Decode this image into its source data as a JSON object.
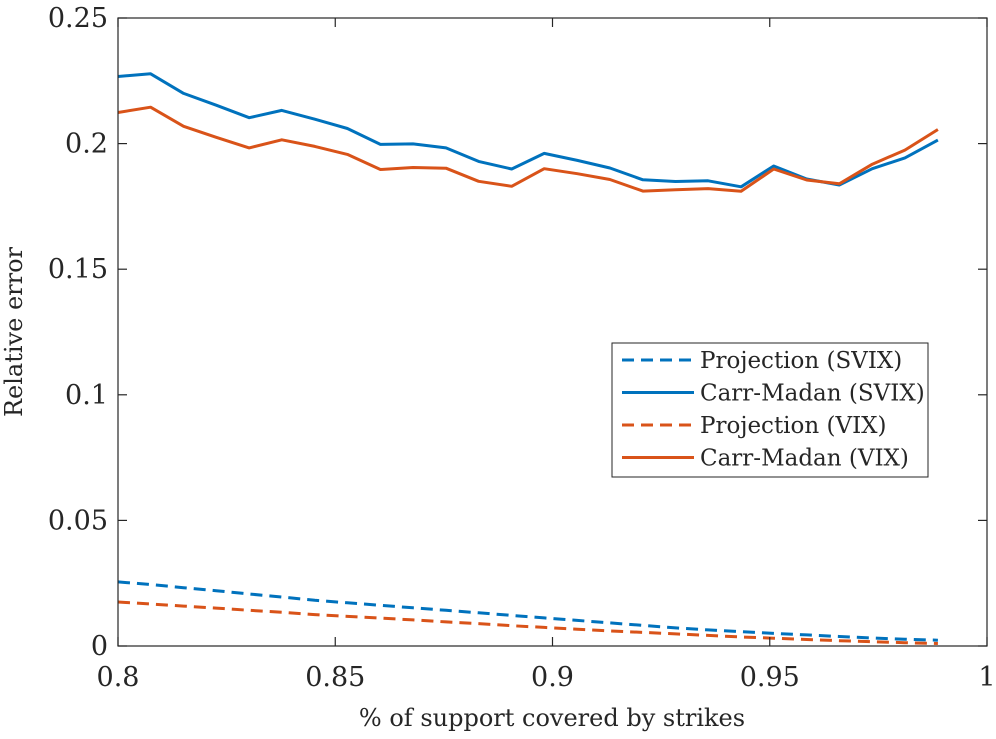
{
  "chart_data": {
    "type": "line",
    "title": "",
    "xlabel": "% of support covered by strikes",
    "ylabel": "Relative error",
    "xlim": [
      0.8,
      1.0
    ],
    "ylim": [
      0,
      0.25
    ],
    "grid": false,
    "legend_position": "right-middle",
    "xticks": [
      0.8,
      0.85,
      0.9,
      0.95,
      1.0
    ],
    "xtick_labels": [
      "0.8",
      "0.85",
      "0.9",
      "0.95",
      "1"
    ],
    "yticks": [
      0,
      0.05,
      0.1,
      0.15,
      0.2,
      0.25
    ],
    "ytick_labels": [
      "0",
      "0.05",
      "0.1",
      "0.15",
      "0.2",
      "0.25"
    ],
    "x": [
      0.8,
      0.8075,
      0.8151,
      0.8226,
      0.8302,
      0.8377,
      0.8453,
      0.8528,
      0.8604,
      0.8679,
      0.8755,
      0.883,
      0.8906,
      0.8981,
      0.9057,
      0.9132,
      0.9208,
      0.9283,
      0.9358,
      0.9434,
      0.9509,
      0.9585,
      0.966,
      0.9736,
      0.9811,
      0.9887
    ],
    "series": [
      {
        "name": "Projection (SVIX)",
        "color": "#0072BD",
        "style": "dashed",
        "values": [
          0.0255,
          0.0245,
          0.0232,
          0.022,
          0.0207,
          0.0195,
          0.0182,
          0.0172,
          0.0162,
          0.0152,
          0.0142,
          0.0132,
          0.0122,
          0.0112,
          0.0102,
          0.0092,
          0.0082,
          0.0072,
          0.0064,
          0.0057,
          0.005,
          0.0044,
          0.0038,
          0.0032,
          0.0027,
          0.0023
        ]
      },
      {
        "name": "Carr-Madan (SVIX)",
        "color": "#0072BD",
        "style": "solid",
        "values": [
          0.2267,
          0.2278,
          0.22,
          0.2153,
          0.2103,
          0.2132,
          0.2097,
          0.206,
          0.1997,
          0.1999,
          0.1983,
          0.1929,
          0.1899,
          0.1961,
          0.1933,
          0.1903,
          0.1856,
          0.1849,
          0.1852,
          0.1828,
          0.1911,
          0.1859,
          0.1835,
          0.19,
          0.1943,
          0.2014
        ]
      },
      {
        "name": "Projection (VIX)",
        "color": "#D95319",
        "style": "dashed",
        "values": [
          0.0175,
          0.0167,
          0.0159,
          0.0151,
          0.0142,
          0.0134,
          0.0125,
          0.0118,
          0.0111,
          0.0104,
          0.0096,
          0.0089,
          0.0081,
          0.0074,
          0.0067,
          0.006,
          0.0054,
          0.0048,
          0.0042,
          0.0036,
          0.0031,
          0.0026,
          0.0021,
          0.0017,
          0.0013,
          0.001
        ]
      },
      {
        "name": "Carr-Madan (VIX)",
        "color": "#D95319",
        "style": "solid",
        "values": [
          0.2124,
          0.2145,
          0.2069,
          0.2025,
          0.1983,
          0.2015,
          0.1989,
          0.1957,
          0.1897,
          0.1905,
          0.1902,
          0.185,
          0.183,
          0.19,
          0.188,
          0.1857,
          0.1811,
          0.1816,
          0.1821,
          0.181,
          0.1899,
          0.1855,
          0.184,
          0.1918,
          0.1974,
          0.2056
        ]
      }
    ]
  }
}
